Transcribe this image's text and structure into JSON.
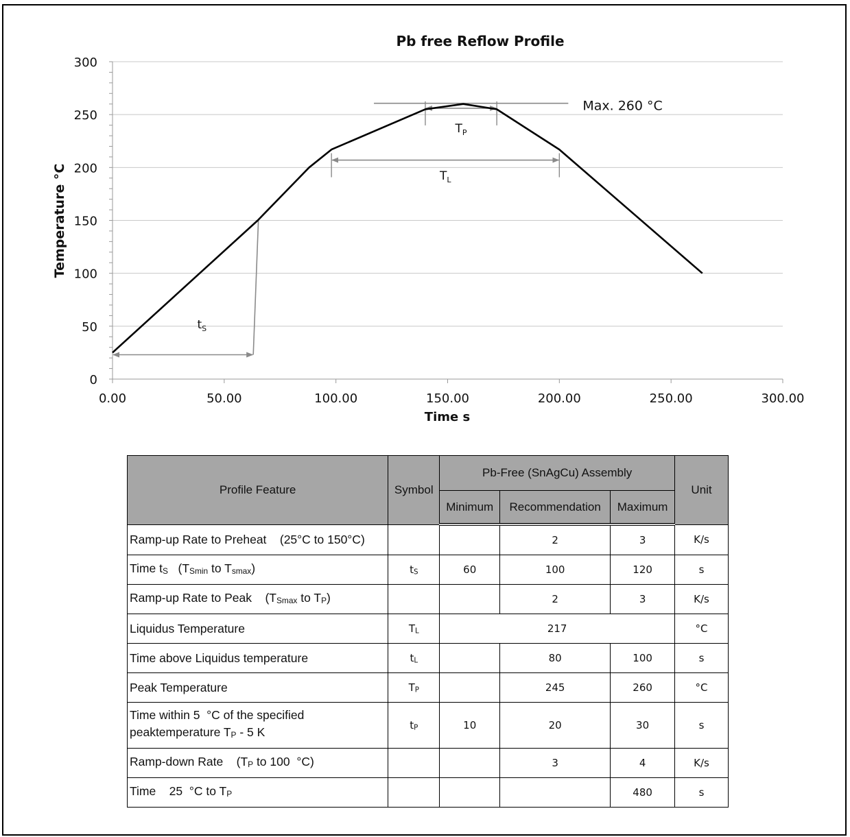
{
  "chart_data": {
    "type": "line",
    "title": "Pb free Reflow Profile",
    "xlabel": "Time s",
    "ylabel": "Temperature °C",
    "xlim": [
      0,
      300
    ],
    "ylim": [
      0,
      300
    ],
    "x_ticks": [
      "0.00",
      "50.00",
      "100.00",
      "150.00",
      "200.00",
      "250.00",
      "300.00"
    ],
    "y_ticks": [
      "0",
      "50",
      "100",
      "150",
      "200",
      "250",
      "300"
    ],
    "grid": "horizontal",
    "series": [
      {
        "color": "#000000",
        "points": [
          [
            0,
            25
          ],
          [
            65,
            150
          ],
          [
            88,
            200
          ],
          [
            98,
            217
          ],
          [
            140,
            255
          ],
          [
            157,
            260
          ],
          [
            172,
            255
          ],
          [
            200,
            217
          ],
          [
            264,
            100
          ]
        ]
      }
    ],
    "annotations": {
      "max_label": "Max. 260 °C",
      "max_line": {
        "x_from": 117,
        "x_to": 204,
        "y": 260
      },
      "tp_label": "T",
      "tp_sub": "P",
      "tp_range": [
        140,
        172
      ],
      "tl_label": "T",
      "tl_sub": "L",
      "tl_range": [
        98,
        200
      ],
      "ts_label": "t",
      "ts_sub": "S",
      "ts_range": [
        0,
        63
      ],
      "ts_top": {
        "x": 65,
        "y": 150
      }
    }
  },
  "table": {
    "header": {
      "feature": "Profile Feature",
      "symbol": "Symbol",
      "group": "Pb-Free (SnAgCu) Assembly",
      "minimum": "Minimum",
      "recommendation": "Recommendation",
      "maximum": "Maximum",
      "unit": "Unit"
    },
    "rows": [
      {
        "feature": "Ramp-up Rate to Preheat    (25°C to 150°C)",
        "symbol": "",
        "symbol_sub": "",
        "min": "",
        "rec": "2",
        "max": "3",
        "unit": "K/s"
      },
      {
        "feature": "Time t",
        "feature_sub": "S",
        "feature_b": "   (T",
        "feature_sub2": "Smin",
        "feature_c": " to T",
        "feature_sub3": "smax",
        "feature_d": ")",
        "symbol": "t",
        "symbol_sub": "S",
        "min": "60",
        "rec": "100",
        "max": "120",
        "unit": "s"
      },
      {
        "feature": "Ramp-up Rate to Peak    (T",
        "feature_sub": "Smax",
        "feature_b": " to T",
        "feature_sub2": "P",
        "feature_c": ")",
        "symbol": "",
        "symbol_sub": "",
        "min": "",
        "rec": "2",
        "max": "3",
        "unit": "K/s"
      },
      {
        "feature": "Liquidus Temperature",
        "symbol": "T",
        "symbol_sub": "L",
        "merged": "217",
        "unit": "°C"
      },
      {
        "feature": "Time above Liquidus temperature",
        "symbol": "t",
        "symbol_sub": "L",
        "min": "",
        "rec": "80",
        "max": "100",
        "unit": "s"
      },
      {
        "feature": "Peak Temperature",
        "symbol": "T",
        "symbol_sub": "P",
        "min": "",
        "rec": "245",
        "max": "260",
        "unit": "°C"
      },
      {
        "feature": "Time within 5  °C of the specified",
        "feature_line2": "peaktemperature T",
        "feature_sub": "P",
        "feature_b": " - 5 K",
        "symbol": "t",
        "symbol_sub": "P",
        "min": "10",
        "rec": "20",
        "max": "30",
        "unit": "s"
      },
      {
        "feature": "Ramp-down Rate    (T",
        "feature_sub": "P",
        "feature_b": " to 100  °C)",
        "symbol": "",
        "symbol_sub": "",
        "min": "",
        "rec": "3",
        "max": "4",
        "unit": "K/s"
      },
      {
        "feature": "Time    25  °C to T",
        "feature_sub": "P",
        "symbol": "",
        "symbol_sub": "",
        "min": "",
        "rec": "",
        "max": "480",
        "unit": "s"
      }
    ]
  }
}
